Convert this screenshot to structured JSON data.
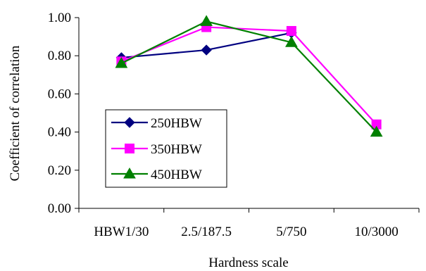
{
  "chart_data": {
    "type": "line",
    "title": "",
    "xlabel": "Hardness scale",
    "ylabel": "Coefficient of correlation",
    "categories": [
      "HBW1/30",
      "2.5/187.5",
      "5/750",
      "10/3000"
    ],
    "ylim": [
      0,
      1.0
    ],
    "yticks": [
      "0.00",
      "0.20",
      "0.40",
      "0.60",
      "0.80",
      "1.00"
    ],
    "legend_position": "left-middle",
    "grid": false,
    "series": [
      {
        "name": "250HBW",
        "color": "#000080",
        "marker": "diamond",
        "x": [
          0,
          1,
          2
        ],
        "values": [
          0.79,
          0.83,
          0.92
        ]
      },
      {
        "name": "350HBW",
        "color": "#ff00ff",
        "marker": "square",
        "x": [
          0,
          1,
          2,
          3
        ],
        "values": [
          0.77,
          0.95,
          0.93,
          0.44
        ]
      },
      {
        "name": "450HBW",
        "color": "#008000",
        "marker": "triangle",
        "x": [
          0,
          1,
          2,
          3
        ],
        "values": [
          0.76,
          0.98,
          0.87,
          0.4
        ]
      }
    ]
  }
}
